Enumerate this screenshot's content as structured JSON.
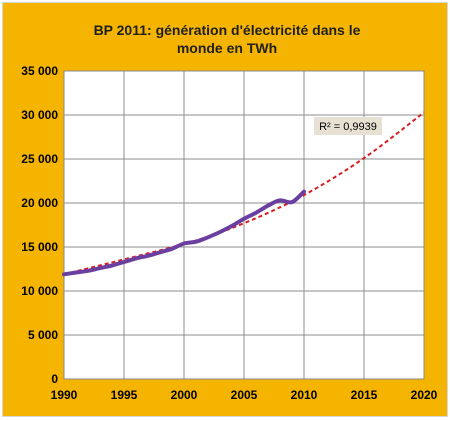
{
  "chart_data": {
    "type": "line",
    "title_lines": [
      "BP 2011: génération d'électricité  dans le",
      "monde en TWh"
    ],
    "xlabel": "",
    "ylabel": "",
    "xlim": [
      1990,
      2020
    ],
    "ylim": [
      0,
      35000
    ],
    "x_ticks": [
      1990,
      1995,
      2000,
      2005,
      2010,
      2015,
      2020
    ],
    "y_ticks": [
      0,
      5000,
      10000,
      15000,
      20000,
      25000,
      30000,
      35000
    ],
    "x_tick_labels": [
      "1990",
      "1995",
      "2000",
      "2005",
      "2010",
      "2015",
      "2020"
    ],
    "y_tick_labels": [
      "0",
      "5 000",
      "10 000",
      "15 000",
      "20 000",
      "25 000",
      "30 000",
      "35 000"
    ],
    "grid": true,
    "series": [
      {
        "name": "",
        "color": "#6a3fa0",
        "x": [
          1990,
          1991,
          1992,
          1993,
          1994,
          1995,
          1996,
          1997,
          1998,
          1999,
          2000,
          2001,
          2002,
          2003,
          2004,
          2005,
          2006,
          2007,
          2008,
          2009,
          2010
        ],
        "y": [
          11900,
          12100,
          12300,
          12600,
          12900,
          13300,
          13700,
          14000,
          14400,
          14800,
          15400,
          15600,
          16100,
          16700,
          17400,
          18200,
          18900,
          19700,
          20300,
          20100,
          21300
        ]
      }
    ],
    "trendline": {
      "color": "#d62020",
      "style": "dashed",
      "x": [
        1990,
        2000,
        2005,
        2010,
        2015,
        2020
      ],
      "y": [
        11900,
        15350,
        17700,
        20900,
        25100,
        30300
      ],
      "label": "R² = 0,9939"
    }
  }
}
